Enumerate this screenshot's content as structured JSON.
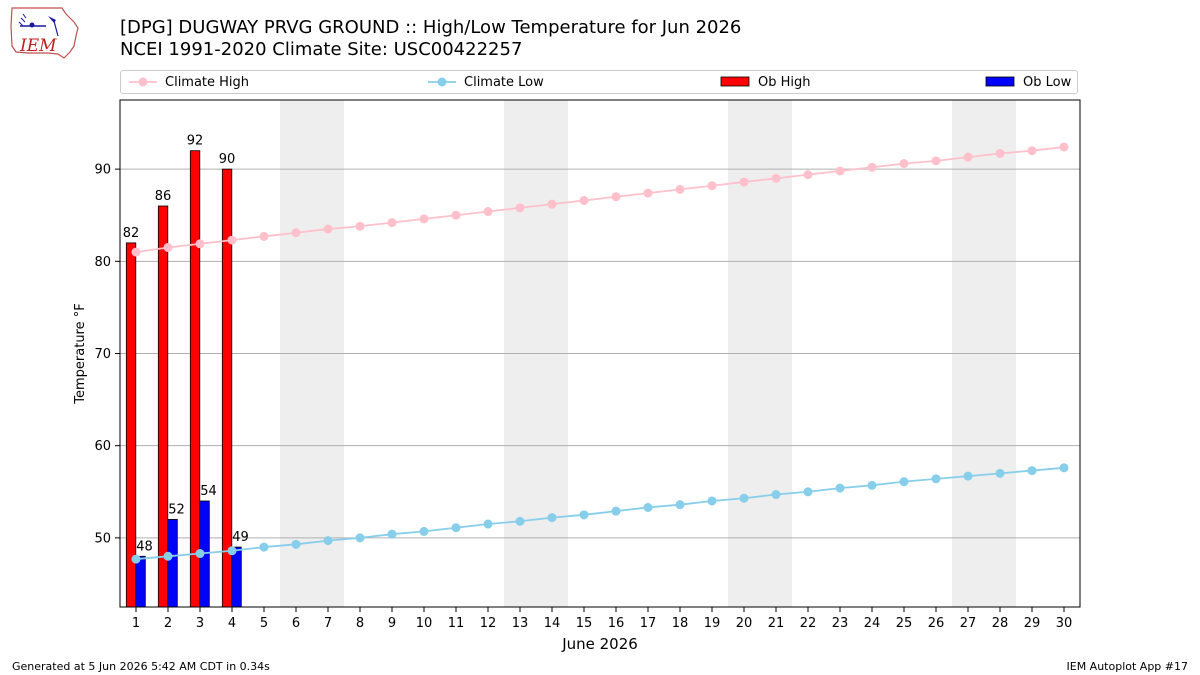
{
  "page": {
    "title_line1": "[DPG] DUGWAY PRVG GROUND :: High/Low Temperature for Jun 2026",
    "title_line2": "NCEI 1991-2020 Climate Site: USC00422257",
    "logo_text": "IEM",
    "footer_left": "Generated at 5 Jun 2026 5:42 AM CDT in 0.34s",
    "footer_right": "IEM Autoplot App #17"
  },
  "colors": {
    "climate_high": "#ffc0cb",
    "climate_low": "#87ceeb",
    "ob_high": "#ff0000",
    "ob_low": "#0000ff",
    "weekend_band": "#eeeeee",
    "grid": "#b0b0b0"
  },
  "chart_data": {
    "type": "bar",
    "xlabel": "June 2026",
    "ylabel": "Temperature °F",
    "xlim": [
      0.5,
      30.5
    ],
    "ylim": [
      42.5,
      97.5
    ],
    "yticks": [
      50,
      60,
      70,
      80,
      90
    ],
    "grid": "horizontal",
    "legend_placement": "top",
    "days": [
      1,
      2,
      3,
      4,
      5,
      6,
      7,
      8,
      9,
      10,
      11,
      12,
      13,
      14,
      15,
      16,
      17,
      18,
      19,
      20,
      21,
      22,
      23,
      24,
      25,
      26,
      27,
      28,
      29,
      30
    ],
    "weekend_bands": [
      [
        6,
        7
      ],
      [
        13,
        14
      ],
      [
        20,
        21
      ],
      [
        27,
        28
      ]
    ],
    "series": [
      {
        "name": "Climate High",
        "kind": "line",
        "values": [
          81.0,
          81.5,
          81.9,
          82.3,
          82.7,
          83.1,
          83.5,
          83.8,
          84.2,
          84.6,
          85.0,
          85.4,
          85.8,
          86.2,
          86.6,
          87.0,
          87.4,
          87.8,
          88.2,
          88.6,
          89.0,
          89.4,
          89.8,
          90.2,
          90.6,
          90.9,
          91.3,
          91.7,
          92.0,
          92.4
        ]
      },
      {
        "name": "Climate Low",
        "kind": "line",
        "values": [
          47.7,
          48.0,
          48.3,
          48.6,
          49.0,
          49.3,
          49.7,
          50.0,
          50.4,
          50.7,
          51.1,
          51.5,
          51.8,
          52.2,
          52.5,
          52.9,
          53.3,
          53.6,
          54.0,
          54.3,
          54.7,
          55.0,
          55.4,
          55.7,
          56.1,
          56.4,
          56.7,
          57.0,
          57.3,
          57.6
        ]
      },
      {
        "name": "Ob High",
        "kind": "bar",
        "values": [
          82,
          86,
          92,
          90
        ]
      },
      {
        "name": "Ob Low",
        "kind": "bar",
        "values": [
          48,
          52,
          54,
          49
        ]
      }
    ]
  }
}
